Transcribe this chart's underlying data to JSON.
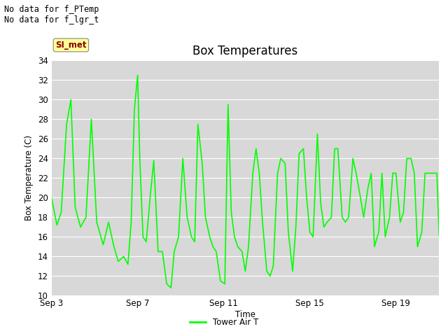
{
  "title": "Box Temperatures",
  "xlabel": "Time",
  "ylabel": "Box Temperature (C)",
  "ylim": [
    10,
    34
  ],
  "yticks": [
    10,
    12,
    14,
    16,
    18,
    20,
    22,
    24,
    26,
    28,
    30,
    32,
    34
  ],
  "plot_bg_color": "#d8d8d8",
  "line_color": "#00ff00",
  "line_width": 1.2,
  "annotations_top_left": [
    "No data for f_PTemp",
    "No data for f_lgr_t"
  ],
  "annotation_font_size": 8.5,
  "title_font_size": 12,
  "label_font_size": 8.5,
  "tick_font_size": 8.5,
  "legend_label": "Tower Air T",
  "legend_line_color": "#00ff00",
  "tab_label": "SI_met",
  "tab_text_color": "#8b0000",
  "tab_bg_color": "#ffff99",
  "tab_border_color": "#888888",
  "xtick_positions": [
    0,
    4,
    8,
    12,
    16
  ],
  "xtick_labels": [
    "Sep 3",
    "Sep 7",
    "Sep 11",
    "Sep 15",
    "Sep 19"
  ],
  "time_values": [
    0,
    0.25,
    0.45,
    0.7,
    0.9,
    1.1,
    1.35,
    1.6,
    1.85,
    2.1,
    2.4,
    2.65,
    2.9,
    3.1,
    3.35,
    3.55,
    3.7,
    3.85,
    4.0,
    4.1,
    4.25,
    4.4,
    4.6,
    4.75,
    4.95,
    5.15,
    5.35,
    5.55,
    5.7,
    5.9,
    6.1,
    6.3,
    6.5,
    6.65,
    6.8,
    7.0,
    7.15,
    7.35,
    7.5,
    7.65,
    7.85,
    8.05,
    8.2,
    8.35,
    8.5,
    8.65,
    8.85,
    9.0,
    9.15,
    9.35,
    9.5,
    9.65,
    9.8,
    10.0,
    10.15,
    10.3,
    10.5,
    10.65,
    10.85,
    11.0,
    11.2,
    11.35,
    11.5,
    11.7,
    11.85,
    12.0,
    12.15,
    12.35,
    12.5,
    12.65,
    12.8,
    13.0,
    13.15,
    13.3,
    13.5,
    13.65,
    13.8,
    14.0,
    14.15,
    14.35,
    14.5,
    14.7,
    14.85,
    15.0,
    15.2,
    15.35,
    15.5,
    15.7,
    15.85,
    16.0,
    16.2,
    16.35,
    16.5,
    16.7,
    16.85,
    17.0,
    17.2,
    17.35,
    17.55,
    17.75,
    17.9,
    18.0
  ],
  "temp_values": [
    20,
    17.2,
    18.5,
    27.5,
    30.0,
    19.0,
    17.0,
    18.0,
    28.0,
    17.5,
    15.2,
    17.5,
    15.0,
    13.5,
    14.0,
    13.2,
    17.5,
    29.0,
    32.5,
    24.0,
    16.0,
    15.5,
    20.5,
    23.8,
    14.5,
    14.5,
    11.2,
    10.8,
    14.5,
    16.0,
    24.0,
    18.0,
    16.0,
    15.5,
    27.5,
    23.5,
    18.0,
    16.0,
    15.0,
    14.5,
    11.5,
    11.2,
    29.5,
    18.5,
    16.0,
    15.0,
    14.5,
    12.5,
    15.0,
    22.5,
    25.0,
    22.5,
    17.5,
    12.5,
    12.0,
    13.0,
    22.5,
    24.0,
    23.5,
    16.5,
    12.5,
    17.0,
    24.5,
    25.0,
    20.0,
    16.5,
    16.0,
    26.5,
    19.5,
    17.0,
    17.5,
    18.0,
    25.0,
    25.0,
    18.0,
    17.5,
    18.0,
    24.0,
    22.5,
    20.0,
    18.0,
    21.0,
    22.5,
    15.0,
    16.5,
    22.5,
    16.0,
    18.0,
    22.5,
    22.5,
    17.5,
    18.5,
    24.0,
    24.0,
    22.5,
    15.0,
    16.5,
    22.5,
    22.5,
    22.5,
    22.5,
    16.2
  ]
}
